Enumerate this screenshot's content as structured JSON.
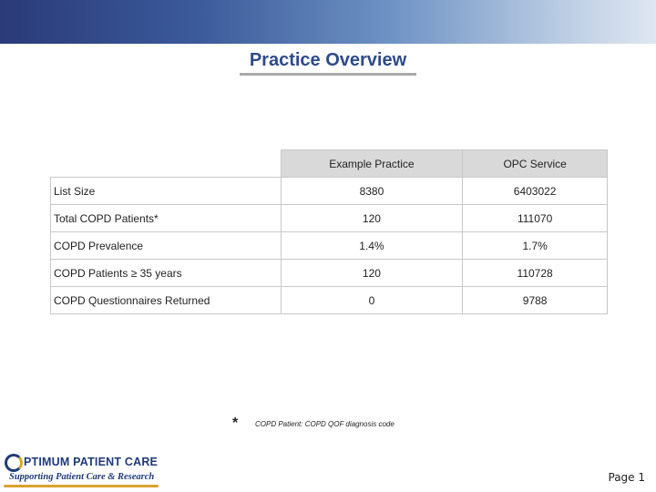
{
  "title": "Practice Overview",
  "table": {
    "headers": [
      "",
      "Example Practice",
      "OPC Service"
    ],
    "rows": [
      {
        "label": "List Size",
        "practice": "8380",
        "service": "6403022"
      },
      {
        "label": "Total COPD Patients*",
        "practice": "120",
        "service": "111070"
      },
      {
        "label": "COPD Prevalence",
        "practice": "1.4%",
        "service": "1.7%"
      },
      {
        "label": "COPD Patients ≥ 35 years",
        "practice": "120",
        "service": "110728"
      },
      {
        "label": "COPD Questionnaires Returned",
        "practice": "0",
        "service": "9788"
      }
    ]
  },
  "footnote": {
    "marker": "*",
    "text": "COPD Patient: COPD QOF diagnosis code"
  },
  "logo": {
    "line1": "PTIMUM PATIENT CARE",
    "line2": "Supporting Patient Care & Research"
  },
  "page_label": "Page 1",
  "colors": {
    "title": "#2e4a8a",
    "header_bg": "#d9d9d9",
    "banner_dark": "#2b3a78",
    "logo_blue": "#1f3a7a",
    "logo_gold": "#d9a22b"
  }
}
